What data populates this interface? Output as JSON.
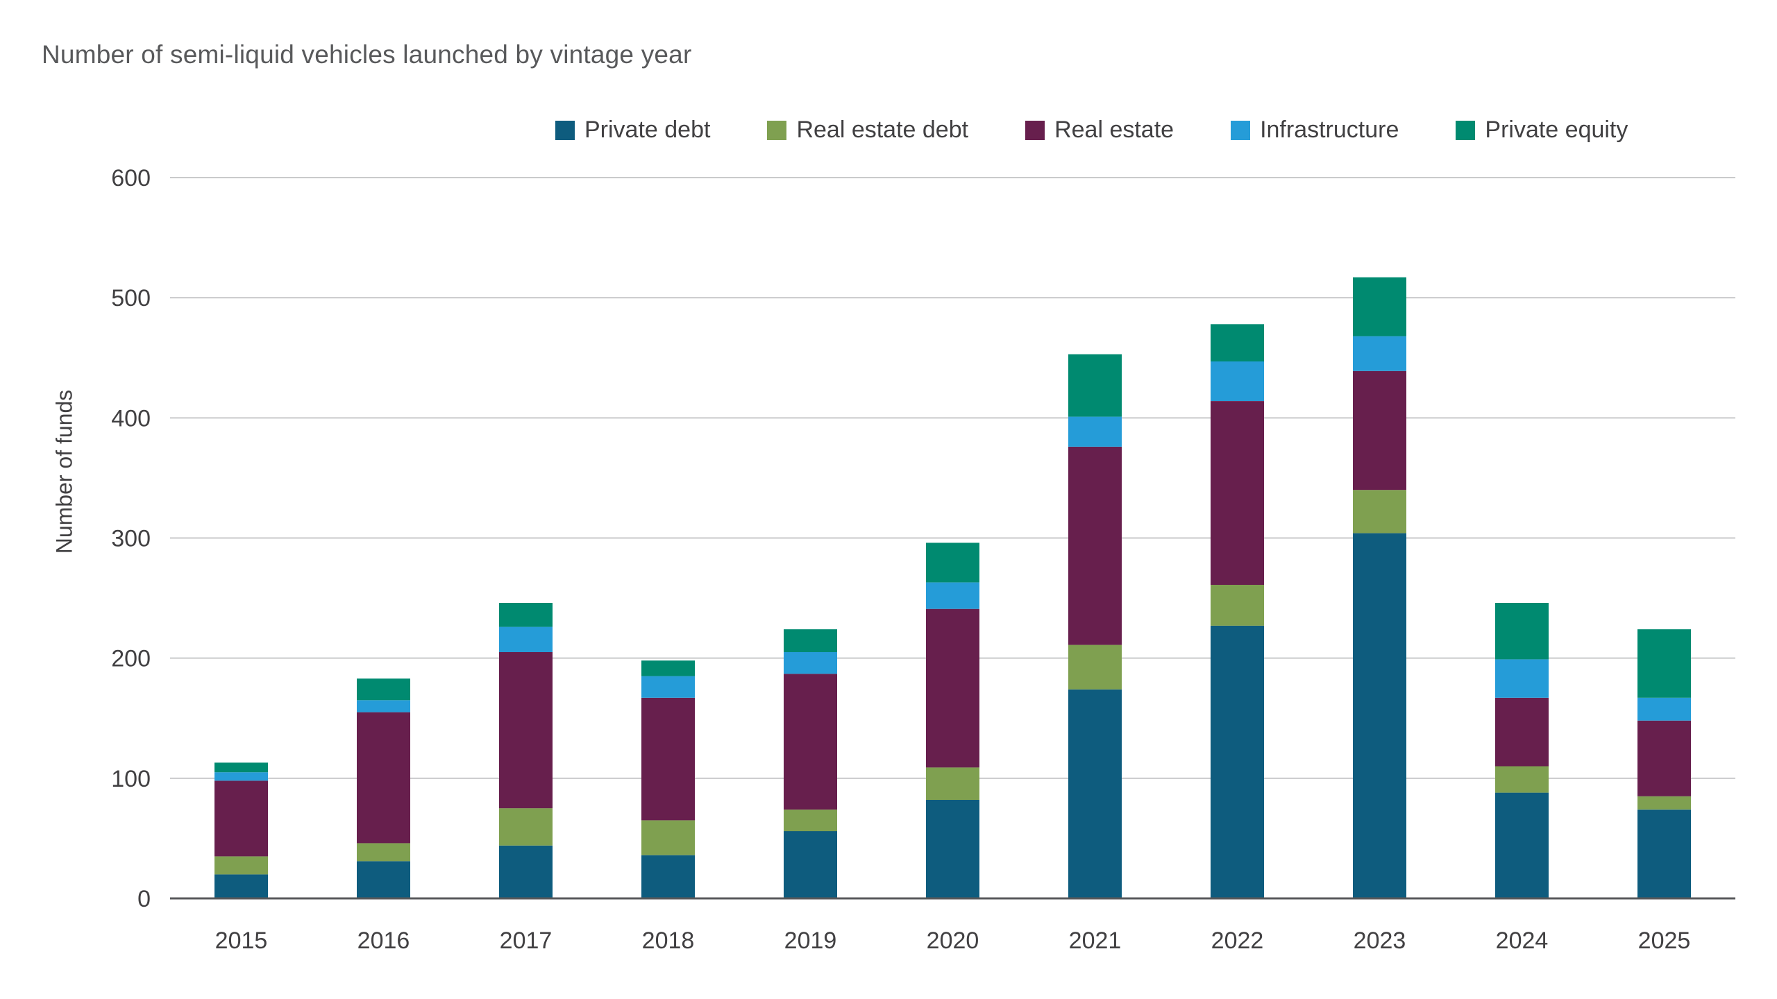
{
  "title": "Number of semi-liquid vehicles launched by vintage year",
  "ylabel": "Number of funds",
  "chart_data": {
    "type": "bar",
    "stacked": true,
    "title": "Number of semi-liquid vehicles launched by vintage year",
    "xlabel": "",
    "ylabel": "Number of funds",
    "ylim": [
      0,
      600
    ],
    "ytick_step": 100,
    "grid": true,
    "legend_position": "top",
    "categories": [
      "2015",
      "2016",
      "2017",
      "2018",
      "2019",
      "2020",
      "2021",
      "2022",
      "2023",
      "2024",
      "2025"
    ],
    "series": [
      {
        "name": "Private debt",
        "color": "#0e5c7e",
        "values": [
          20,
          31,
          44,
          36,
          56,
          82,
          174,
          227,
          304,
          88,
          74
        ]
      },
      {
        "name": "Real estate debt",
        "color": "#7fa050",
        "values": [
          15,
          15,
          31,
          29,
          18,
          27,
          37,
          34,
          36,
          22,
          11
        ]
      },
      {
        "name": "Real estate",
        "color": "#671f4d",
        "values": [
          63,
          109,
          130,
          102,
          113,
          132,
          165,
          153,
          99,
          57,
          63
        ]
      },
      {
        "name": "Infrastructure",
        "color": "#259cd8",
        "values": [
          7,
          10,
          21,
          18,
          18,
          22,
          25,
          33,
          29,
          32,
          19
        ]
      },
      {
        "name": "Private equity",
        "color": "#008a70",
        "values": [
          8,
          18,
          20,
          13,
          19,
          33,
          52,
          31,
          49,
          47,
          57
        ]
      }
    ],
    "totals": [
      113,
      183,
      246,
      198,
      224,
      296,
      453,
      478,
      517,
      246,
      224
    ]
  },
  "colors": {
    "grid": "#c9cacb",
    "axis": "#58595b",
    "text": "#414042",
    "title_text": "#58595b",
    "background": "#ffffff"
  }
}
